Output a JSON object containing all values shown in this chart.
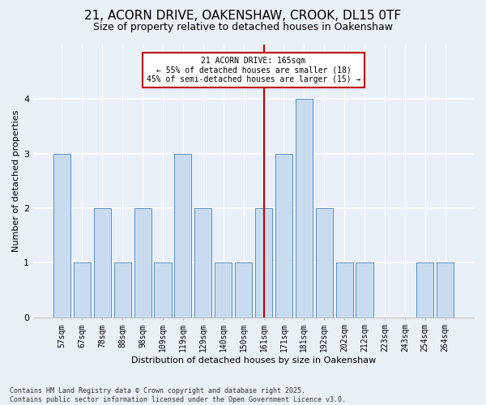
{
  "title1": "21, ACORN DRIVE, OAKENSHAW, CROOK, DL15 0TF",
  "title2": "Size of property relative to detached houses in Oakenshaw",
  "xlabel": "Distribution of detached houses by size in Oakenshaw",
  "ylabel": "Number of detached properties",
  "categories": [
    "57sqm",
    "67sqm",
    "78sqm",
    "88sqm",
    "98sqm",
    "109sqm",
    "119sqm",
    "129sqm",
    "140sqm",
    "150sqm",
    "161sqm",
    "171sqm",
    "181sqm",
    "192sqm",
    "202sqm",
    "212sqm",
    "223sqm",
    "243sqm",
    "254sqm",
    "264sqm"
  ],
  "values": [
    3,
    1,
    2,
    1,
    2,
    1,
    3,
    2,
    1,
    1,
    2,
    3,
    4,
    2,
    1,
    1,
    0,
    0,
    1,
    1
  ],
  "bar_color": "#c9dcef",
  "bar_edge_color": "#5b8ec4",
  "vline_x_index": 10,
  "vline_color": "#c00000",
  "annotation_text": "21 ACORN DRIVE: 165sqm\n← 55% of detached houses are smaller (18)\n45% of semi-detached houses are larger (15) →",
  "annotation_box_color": "#c00000",
  "ylim": [
    0,
    5
  ],
  "yticks": [
    0,
    1,
    2,
    3,
    4
  ],
  "footer": "Contains HM Land Registry data © Crown copyright and database right 2025.\nContains public sector information licensed under the Open Government Licence v3.0.",
  "bg_color": "#eaf0f8",
  "grid_color": "#ffffff",
  "title_fontsize": 11,
  "subtitle_fontsize": 9,
  "xlabel_fontsize": 8,
  "ylabel_fontsize": 8,
  "tick_fontsize": 7,
  "bar_width": 0.85
}
